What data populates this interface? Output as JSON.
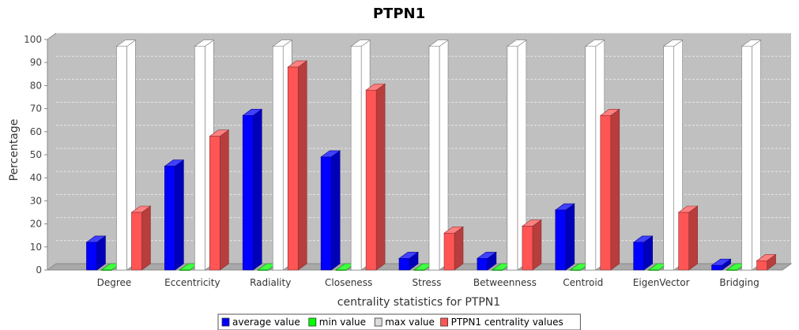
{
  "chart_data": {
    "type": "bar",
    "title": "PTPN1",
    "xlabel": "centrality statistics for PTPN1",
    "ylabel": "Percentage",
    "ylim": [
      0,
      100
    ],
    "yticks": [
      0,
      10,
      20,
      30,
      40,
      50,
      60,
      70,
      80,
      90,
      100
    ],
    "grid": true,
    "legend_position": "bottom",
    "categories": [
      "Degree",
      "Eccentricity",
      "Radiality",
      "Closeness",
      "Stress",
      "Betweenness",
      "Centroid",
      "EigenVector",
      "Bridging"
    ],
    "series": [
      {
        "name": "average value",
        "color": "#0000ff",
        "values": [
          12,
          45,
          67,
          49,
          5,
          5,
          26,
          12,
          2
        ]
      },
      {
        "name": "min value",
        "color": "#00ff00",
        "values": [
          0,
          0,
          0,
          0,
          0,
          0,
          0,
          0,
          0
        ]
      },
      {
        "name": "max value",
        "color": "#ffffff",
        "values": [
          97,
          97,
          97,
          97,
          97,
          97,
          97,
          97,
          97
        ]
      },
      {
        "name": "PTPN1 centrality values",
        "color": "#ff5555",
        "values": [
          25,
          58,
          88,
          78,
          16,
          19,
          67,
          25,
          4
        ]
      }
    ]
  }
}
